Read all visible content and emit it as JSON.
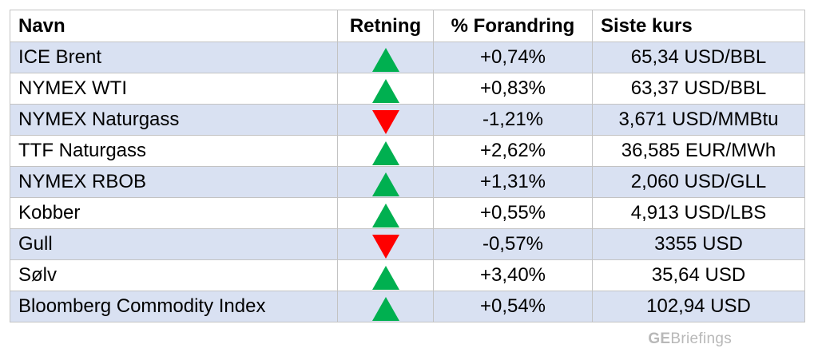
{
  "headers": {
    "name": "Navn",
    "direction": "Retning",
    "change": "% Forandring",
    "price": "Siste kurs"
  },
  "rows": [
    {
      "name": "ICE Brent",
      "direction": "up",
      "change": "+0,74%",
      "price": "65,34 USD/BBL"
    },
    {
      "name": "NYMEX WTI",
      "direction": "up",
      "change": "+0,83%",
      "price": "63,37 USD/BBL"
    },
    {
      "name": "NYMEX Naturgass",
      "direction": "down",
      "change": "-1,21%",
      "price": "3,671 USD/MMBtu"
    },
    {
      "name": "TTF Naturgass",
      "direction": "up",
      "change": "+2,62%",
      "price": "36,585 EUR/MWh"
    },
    {
      "name": "NYMEX RBOB",
      "direction": "up",
      "change": "+1,31%",
      "price": "2,060 USD/GLL"
    },
    {
      "name": "Kobber",
      "direction": "up",
      "change": "+0,55%",
      "price": "4,913 USD/LBS"
    },
    {
      "name": "Gull",
      "direction": "down",
      "change": "-0,57%",
      "price": "3355 USD"
    },
    {
      "name": "Sølv",
      "direction": "up",
      "change": "+3,40%",
      "price": "35,64 USD"
    },
    {
      "name": "Bloomberg Commodity Index",
      "direction": "up",
      "change": "+0,54%",
      "price": "102,94 USD"
    }
  ],
  "colors": {
    "up": "#00b050",
    "down": "#ff0000",
    "shaded_row": "#d9e1f2"
  },
  "icons": {
    "up": "triangle-up-icon",
    "down": "triangle-down-icon"
  },
  "brand": {
    "ge": "GE",
    "rest": "Briefings"
  }
}
